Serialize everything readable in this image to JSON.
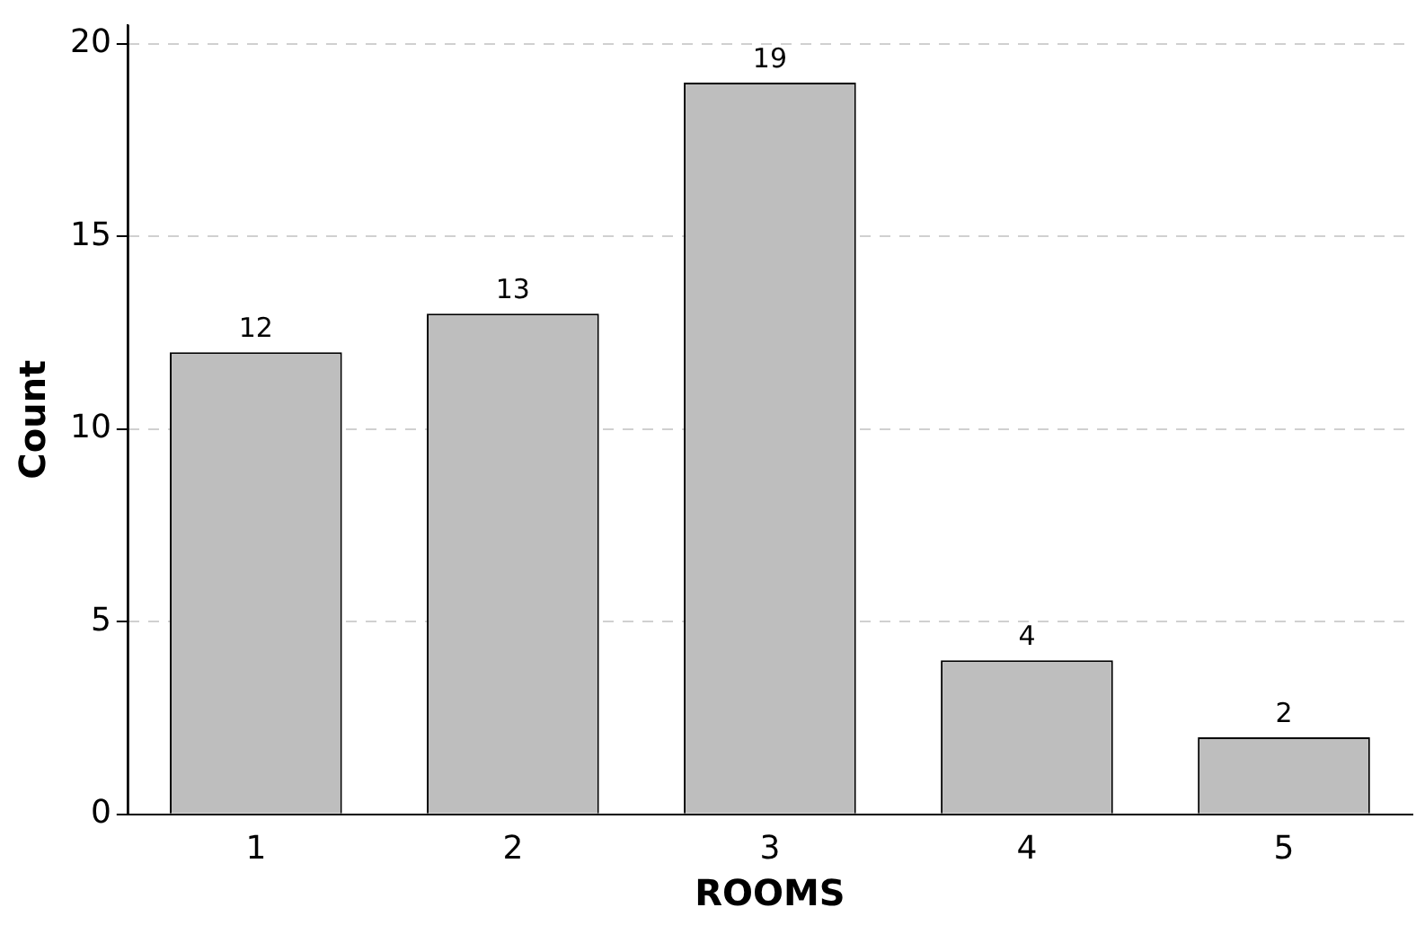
{
  "chart_data": {
    "type": "bar",
    "xlabel": "ROOMS",
    "ylabel": "Count",
    "categories": [
      "1",
      "2",
      "3",
      "4",
      "5"
    ],
    "values": [
      12,
      13,
      19,
      4,
      2
    ],
    "color": "#bebebe",
    "ylim": [
      0,
      20.5
    ],
    "yticks": [
      0,
      5,
      10,
      15,
      20
    ],
    "grid": "y",
    "data_labels": true,
    "legend": false
  }
}
